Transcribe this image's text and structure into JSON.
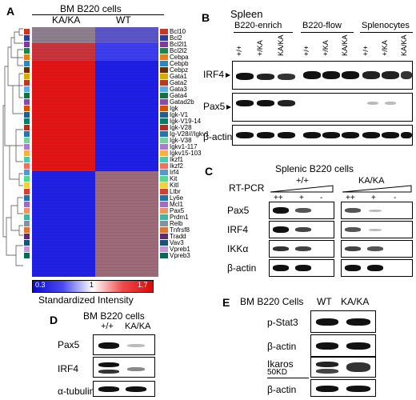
{
  "panelA": {
    "letter": "A",
    "title": "BM B220 cells",
    "col1": "KA/KA",
    "col2": "WT",
    "genes": [
      "Bcl10",
      "Bcl2",
      "Bcl2l1",
      "Bcl2l2",
      "Cebpa",
      "Cebpb",
      "Cebpz",
      "Gata1",
      "Gata2",
      "Gata3",
      "Gata4",
      "Gatad2b",
      "Igk",
      "Igk-V1",
      "Igk-V19-14",
      "Igk-V28",
      "Ig-V28///Igkv1",
      "Igk-V38",
      "Igkv1-117",
      "Igkv15-103",
      "Ikzf1",
      "Ikzf2",
      "Irf4",
      "Kit",
      "Kitl",
      "Ltbr",
      "Ly6e",
      "Mcl1",
      "Pax5",
      "Prdm1",
      "Relb",
      "Tnfrsf8",
      "Tradd",
      "Vav3",
      "Vpreb1",
      "Vpreb3"
    ],
    "gene_colors": [
      "#c0392b",
      "#2c3e94",
      "#7d3c98",
      "#1e8449",
      "#e67e22",
      "#2e86c1",
      "#6e2c00",
      "#d4ac0d",
      "#b03a2e",
      "#5dade2",
      "#196f3d",
      "#884ea0",
      "#d35400",
      "#1f618d",
      "#117a65",
      "#a93226",
      "#2874a6",
      "#7dcea0",
      "#af7ac5",
      "#f5b041",
      "#48c9b0",
      "#ec7063",
      "#5499c7",
      "#58d68d",
      "#f4d03f",
      "#cb4335",
      "#2471a3",
      "#a569bd",
      "#e59866",
      "#45b39d",
      "#85929e",
      "#dc7633",
      "#5b2c6f",
      "#1a5276",
      "#c39bd3",
      "#0e6655"
    ],
    "scale_min": "0.3",
    "scale_mid": "1",
    "scale_max": "1.7",
    "scale_label": "Standardized Intensity"
  },
  "panelB": {
    "letter": "B",
    "title": "Spleen",
    "groups": [
      "B220-enrich",
      "B220-flow",
      "Splenocytes"
    ],
    "lanes": [
      "+/+",
      "+/KA",
      "KA/KA",
      "+/+",
      "+/KA",
      "KA/KA",
      "+/+",
      "+/KA",
      "KA/KA"
    ],
    "rows": [
      "IRF4",
      "Pax5",
      "β-actin"
    ]
  },
  "panelC": {
    "letter": "C",
    "title": "Splenic B220 cells",
    "method": "RT-PCR",
    "geno1": "+/+",
    "geno2": "KA/KA",
    "lanes": [
      "++",
      "+",
      "-",
      "++",
      "+",
      "-"
    ],
    "rows": [
      "Pax5",
      "IRF4",
      "IKKα",
      "β-actin"
    ]
  },
  "panelD": {
    "letter": "D",
    "title": "BM B220 cells",
    "lanes": [
      "+/+",
      "KA/KA"
    ],
    "rows": [
      "Pax5",
      "IRF4",
      "α-tubulin"
    ]
  },
  "panelE": {
    "letter": "E",
    "title": "BM B220 Cells",
    "lanes": [
      "WT",
      "KA/KA"
    ],
    "rows": [
      "p-Stat3",
      "β-actin",
      "Ikaros",
      "β-actin"
    ],
    "marker": "50KD"
  }
}
